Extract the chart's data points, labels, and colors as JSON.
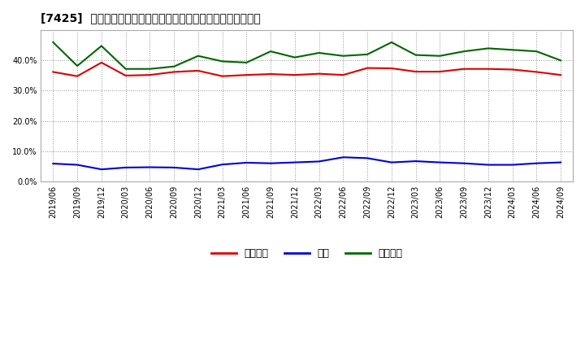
{
  "title": "[7425]  売上債権、在庫、買入債務の総資産に対する比率の推移",
  "dates": [
    "2019/06",
    "2019/09",
    "2019/12",
    "2020/03",
    "2020/06",
    "2020/09",
    "2020/12",
    "2021/03",
    "2021/06",
    "2021/09",
    "2021/12",
    "2022/03",
    "2022/06",
    "2022/09",
    "2022/12",
    "2023/03",
    "2023/06",
    "2023/09",
    "2023/12",
    "2024/03",
    "2024/06",
    "2024/09"
  ],
  "receivables": [
    0.362,
    0.348,
    0.393,
    0.35,
    0.352,
    0.362,
    0.366,
    0.348,
    0.352,
    0.355,
    0.352,
    0.356,
    0.352,
    0.375,
    0.374,
    0.363,
    0.363,
    0.372,
    0.372,
    0.37,
    0.362,
    0.352
  ],
  "inventory": [
    0.059,
    0.055,
    0.04,
    0.046,
    0.047,
    0.046,
    0.04,
    0.056,
    0.062,
    0.06,
    0.063,
    0.066,
    0.08,
    0.077,
    0.063,
    0.067,
    0.063,
    0.06,
    0.055,
    0.055,
    0.06,
    0.063
  ],
  "payables": [
    0.46,
    0.382,
    0.448,
    0.372,
    0.372,
    0.38,
    0.415,
    0.397,
    0.393,
    0.43,
    0.41,
    0.425,
    0.415,
    0.42,
    0.46,
    0.418,
    0.415,
    0.43,
    0.44,
    0.435,
    0.43,
    0.4
  ],
  "receivables_color": "#dd0000",
  "inventory_color": "#0000dd",
  "payables_color": "#006600",
  "background_color": "#ffffff",
  "plot_bg_color": "#ffffff",
  "grid_color": "#777777",
  "ylim": [
    0.0,
    0.5
  ],
  "yticks": [
    0.0,
    0.1,
    0.2,
    0.3,
    0.4
  ],
  "legend_labels": [
    "売上債権",
    "在庫",
    "買入債務"
  ]
}
